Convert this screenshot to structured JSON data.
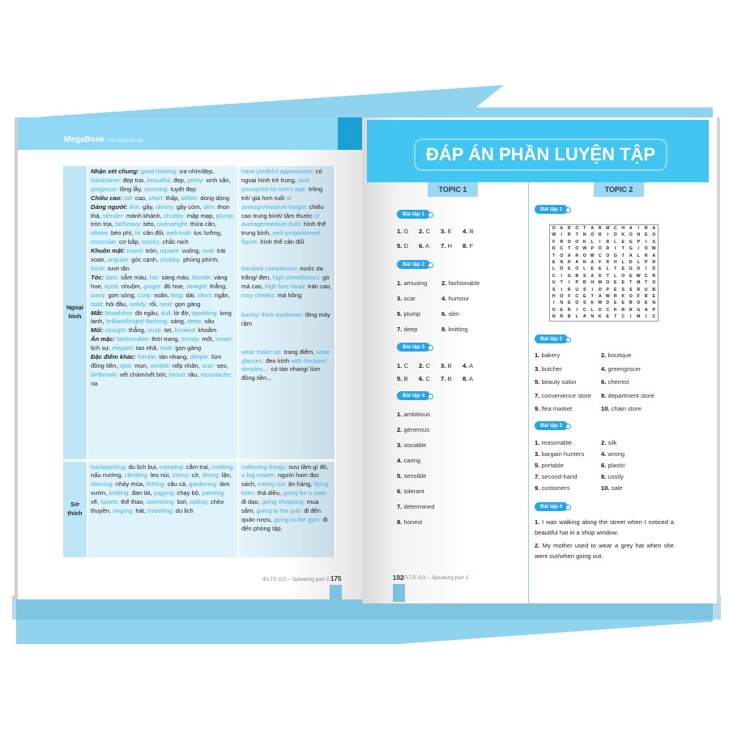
{
  "brand": {
    "logo": "MegaBook",
    "tagline": "Cảm hứng học tập"
  },
  "left_page": {
    "rows": [
      {
        "label": "Ngoại hình",
        "col2": [
          {
            "head": "Nhận xét chung:",
            "items": [
              [
                "good-looking:",
                "ưa nhìn/đẹp,"
              ],
              [
                "handsome:",
                "đẹp trai,"
              ],
              [
                "beautiful:",
                "đẹp,"
              ],
              [
                "pretty:",
                "xinh xắn,"
              ],
              [
                "gorgeous:",
                "lộng lẫy,"
              ],
              [
                "stunning:",
                "tuyệt đẹp"
              ]
            ]
          },
          {
            "head": "Chiều cao:",
            "items": [
              [
                "tall:",
                "cao,"
              ],
              [
                "short:",
                "thấp,"
              ],
              [
                "tallish:",
                "dong dỏng"
              ]
            ]
          },
          {
            "head": "Dáng người:",
            "items": [
              [
                "thin:",
                "gầy,"
              ],
              [
                "skinny:",
                "gầy còm,"
              ],
              [
                "slim:",
                "thon thả,"
              ],
              [
                "slender:",
                "mảnh khảnh,"
              ],
              [
                "chubby:",
                "mập mạp,"
              ],
              [
                "plump:",
                "tròn trịa,"
              ],
              [
                "fat/heavy:",
                "béo,"
              ],
              [
                "overweight:",
                "thừa cân,"
              ],
              [
                "obese:",
                "béo phì,"
              ],
              [
                "fit:",
                "cân đối,"
              ],
              [
                "well-built:",
                "lực lưỡng,"
              ],
              [
                "muscular:",
                "cơ bắp,"
              ],
              [
                "stocky:",
                "chắc nịch"
              ]
            ]
          },
          {
            "head": "Khuôn mặt:",
            "items": [
              [
                "round:",
                "tròn,"
              ],
              [
                "square:",
                "vuông,"
              ],
              [
                "oval:",
                "trái xoan,"
              ],
              [
                "angular:",
                "góc cạnh,"
              ],
              [
                "chubby:",
                "phúng phính,"
              ],
              [
                "fresh:",
                "tươi tắn"
              ]
            ]
          },
          {
            "head": "Tóc:",
            "items": [
              [
                "dark:",
                "sẫm màu,"
              ],
              [
                "fair:",
                "sáng màu,"
              ],
              [
                "blonde:",
                "vàng hoe,"
              ],
              [
                "dyed:",
                "nhuộm,"
              ],
              [
                "ginger:",
                "đỏ hoe,"
              ],
              [
                "straight:",
                "thẳng,"
              ],
              [
                "wavy:",
                "gợn sóng,"
              ],
              [
                "curly:",
                "xoăn,"
              ],
              [
                "long:",
                "dài,"
              ],
              [
                "short:",
                "ngắn,"
              ],
              [
                "bald:",
                "hói đầu,"
              ],
              [
                "untidy:",
                "rối,"
              ],
              [
                "neat:",
                "gọn gàng"
              ]
            ]
          },
          {
            "head": "Mắt:",
            "items": [
              [
                "bloodshot:",
                "đỏ ngầu,"
              ],
              [
                "dull:",
                "lờ đờ,"
              ],
              [
                "sparkling:",
                "long lanh,"
              ],
              [
                "brilliant/bright/ flashing:",
                "sáng,"
              ],
              [
                "deep:",
                "sâu"
              ]
            ]
          },
          {
            "head": "Mũi:",
            "items": [
              [
                "straight:",
                "thẳng,"
              ],
              [
                "snub:",
                "tẹt,"
              ],
              [
                "hooked:",
                "khoằm"
              ]
            ]
          },
          {
            "head": "Ăn mặc:",
            "items": [
              [
                "fashionable:",
                "thời trang,"
              ],
              [
                "trendy:",
                "mốt,"
              ],
              [
                "smart:",
                "lịch sự,"
              ],
              [
                "elegant:",
                "tao nhã,"
              ],
              [
                "neat:",
                "gọn gàng"
              ]
            ]
          },
          {
            "head": "Đặc điểm khác:",
            "items": [
              [
                "freckle:",
                "tàn nhang,"
              ],
              [
                "dimple:",
                "lúm đồng tiền,"
              ],
              [
                "spot:",
                "mụn,"
              ],
              [
                "wrinkle:",
                "nếp nhăn,"
              ],
              [
                "scar:",
                "sẹo,"
              ],
              [
                "birthmark:",
                "vết chàm/vết bớt,"
              ],
              [
                "beard:",
                "râu,"
              ],
              [
                "moustache:",
                "ria"
              ]
            ]
          }
        ],
        "col3": [
          {
            "head": "",
            "items": [
              [
                "have youthful appearance:",
                "có ngoại hình trẻ trung,"
              ],
              [
                "look young/old for one's age:",
                "trông trẻ/ già hơn tuổi"
              ],
              [
                "of average/medium height:",
                "chiều cao trung bình/ tầm thước"
              ],
              [
                "of average/medium built:",
                "hình thể trung bình,"
              ],
              [
                "well-proportioned figure:",
                "hình thể cân đối"
              ]
            ]
          },
          {
            "head": "",
            "items": [
              [
                "fair/dark complexion:",
                "nước da trắng/ đen,"
              ],
              [
                "high cheekbones:",
                "gò má cao,"
              ],
              [
                "high fore head:",
                "trán cao,"
              ],
              [
                "rosy cheeks:",
                "má hồng"
              ]
            ]
          },
          {
            "head": "",
            "items": [
              [
                "bushy/ thick eyebrows:",
                "lông mày rậm"
              ]
            ]
          },
          {
            "head": "",
            "items": [
              [
                "wear make-up:",
                "trang điểm,"
              ],
              [
                "wear glasses:",
                "đeo kính"
              ],
              [
                "with freckles/ dimples...:",
                "có tàn nhang/ lúm đồng tiền..."
              ]
            ]
          }
        ]
      },
      {
        "label": "Sở thích",
        "col2": [
          {
            "head": "",
            "items": [
              [
                "backpacking:",
                "du lịch bụi,"
              ],
              [
                "camping:",
                "cắm trại,"
              ],
              [
                "cooking:",
                "nấu nướng,"
              ],
              [
                "climbing:",
                "leo núi,"
              ],
              [
                "chess:",
                "cờ,"
              ],
              [
                "diving:",
                "lặn,"
              ],
              [
                "dancing:",
                "nhảy múa,"
              ],
              [
                "fishing:",
                "câu cá,"
              ],
              [
                "gardening:",
                "làm vườn,"
              ],
              [
                "knitting:",
                "đan lát,"
              ],
              [
                "jogging:",
                "chạy bộ,"
              ],
              [
                "painting:",
                "vẽ,"
              ],
              [
                "sports:",
                "thể thao,"
              ],
              [
                "swimming:",
                "bơi,"
              ],
              [
                "sailing:",
                "chèo thuyền,"
              ],
              [
                "singing:",
                "hát,"
              ],
              [
                "travelling:",
                "du lịch"
              ]
            ]
          }
        ],
        "col3": [
          {
            "head": "",
            "items": [
              [
                "collecting things:",
                "sưu tầm gì đó,"
              ],
              [
                "a big reader:",
                "người ham đọc sách,"
              ],
              [
                "eating out:",
                "ăn hàng,"
              ],
              [
                "flying kites:",
                "thả diều,"
              ],
              [
                "going for a walk:",
                "đi dạo,"
              ],
              [
                "going shopping:",
                "mua sắm,"
              ],
              [
                "going to the pub:",
                "đi đến quán rượu,"
              ],
              [
                "going to the gym:",
                "đi đến phòng tập,"
              ]
            ]
          }
        ]
      }
    ],
    "footer": "IELTS GO – Speaking part 2",
    "page_number": "175"
  },
  "right_page": {
    "title": "ĐÁP ÁN PHẦN LUYỆN TẬP",
    "topic1": {
      "label": "TOPIC 1",
      "exercises": [
        {
          "label": "Bài tập 1",
          "answers": [
            [
              "1.",
              "G"
            ],
            [
              "2.",
              "C"
            ],
            [
              "3.",
              "E"
            ],
            [
              "4.",
              "B"
            ],
            [
              "5.",
              "D"
            ],
            [
              "6.",
              "A"
            ],
            [
              "7.",
              "H"
            ],
            [
              "8.",
              "F"
            ]
          ]
        },
        {
          "label": "Bài tập 2",
          "answers": [
            [
              "1.",
              "amusing"
            ],
            [
              "2.",
              "fashionable"
            ],
            [
              "3.",
              "scar"
            ],
            [
              "4.",
              "humour"
            ],
            [
              "5.",
              "plump"
            ],
            [
              "6.",
              "slim"
            ],
            [
              "7.",
              "deep"
            ],
            [
              "8.",
              "knitting"
            ]
          ]
        },
        {
          "label": "Bài tập 3",
          "answers": [
            [
              "1.",
              "C"
            ],
            [
              "2.",
              "C"
            ],
            [
              "3.",
              "B"
            ],
            [
              "4.",
              "A"
            ],
            [
              "5.",
              "B"
            ],
            [
              "6.",
              "C"
            ],
            [
              "7.",
              "B"
            ],
            [
              "8.",
              "A"
            ]
          ]
        },
        {
          "label": "Bài tập 4",
          "answers": [
            [
              "1.",
              "ambitious"
            ],
            [
              "2.",
              "generous"
            ],
            [
              "3.",
              "sociable"
            ],
            [
              "4.",
              "caring"
            ],
            [
              "5.",
              "sensible"
            ],
            [
              "6.",
              "tolerant"
            ],
            [
              "7.",
              "determined"
            ],
            [
              "8.",
              "honest"
            ]
          ]
        }
      ]
    },
    "topic2": {
      "label": "TOPIC 2",
      "ex1_label": "Bài tập 1",
      "word_search": [
        "OAROTARMCHAIRA",
        "WIRTNORIOKONEO",
        "FROOKLIRLEGPIS",
        "DCTOWPORITGIOW",
        "TOAROWCOGTALRA",
        "ENRANAFRHLDLPR",
        "LDEOLEELTEGOID",
        "CIGBSADTLOEWCR",
        "UTIPRHMOEETMTO",
        "SIRUSIOPESSRUB",
        "HOFCETAWRKOFRE",
        "INEOSKWDEEBOEN",
        "OERICLOCKRRGAP",
        "NRBLANKETCIMIC"
      ],
      "ex2": {
        "label": "Bài tập 2",
        "answers": [
          [
            "1.",
            "bakery"
          ],
          [
            "2.",
            "boutique"
          ],
          [
            "3.",
            "butcher"
          ],
          [
            "4.",
            "greengrocer"
          ],
          [
            "5.",
            "beauty salon"
          ],
          [
            "6.",
            "chemist"
          ],
          [
            "7.",
            "convenience store"
          ],
          [
            "8.",
            "department store"
          ],
          [
            "9.",
            "flea market"
          ],
          [
            "10.",
            "chain store"
          ]
        ]
      },
      "ex3": {
        "label": "Bài tập 3",
        "answers": [
          [
            "1.",
            "reasonable"
          ],
          [
            "2.",
            "silk"
          ],
          [
            "3.",
            "bargain hunters"
          ],
          [
            "4.",
            "wrong"
          ],
          [
            "5.",
            "portable"
          ],
          [
            "6.",
            "plastic"
          ],
          [
            "7.",
            "second-hand"
          ],
          [
            "8.",
            "costly"
          ],
          [
            "9.",
            "customers"
          ],
          [
            "10.",
            "sale"
          ]
        ]
      },
      "ex4": {
        "label": "Bài tập 4",
        "answers": [
          [
            "1.",
            "I was walking along the street when I noticed a beautiful hat in a shop window."
          ],
          [
            "2.",
            "My mother used to wear a grey hat when she went out/when going out."
          ]
        ]
      }
    },
    "footer": "IELTS GO – Speaking part 2",
    "page_number": "192"
  },
  "colors": {
    "accent": "#42c5f0",
    "term": "#3bb3e8",
    "pill": "#27a5e6",
    "backdrop": "#8fd3ef"
  }
}
